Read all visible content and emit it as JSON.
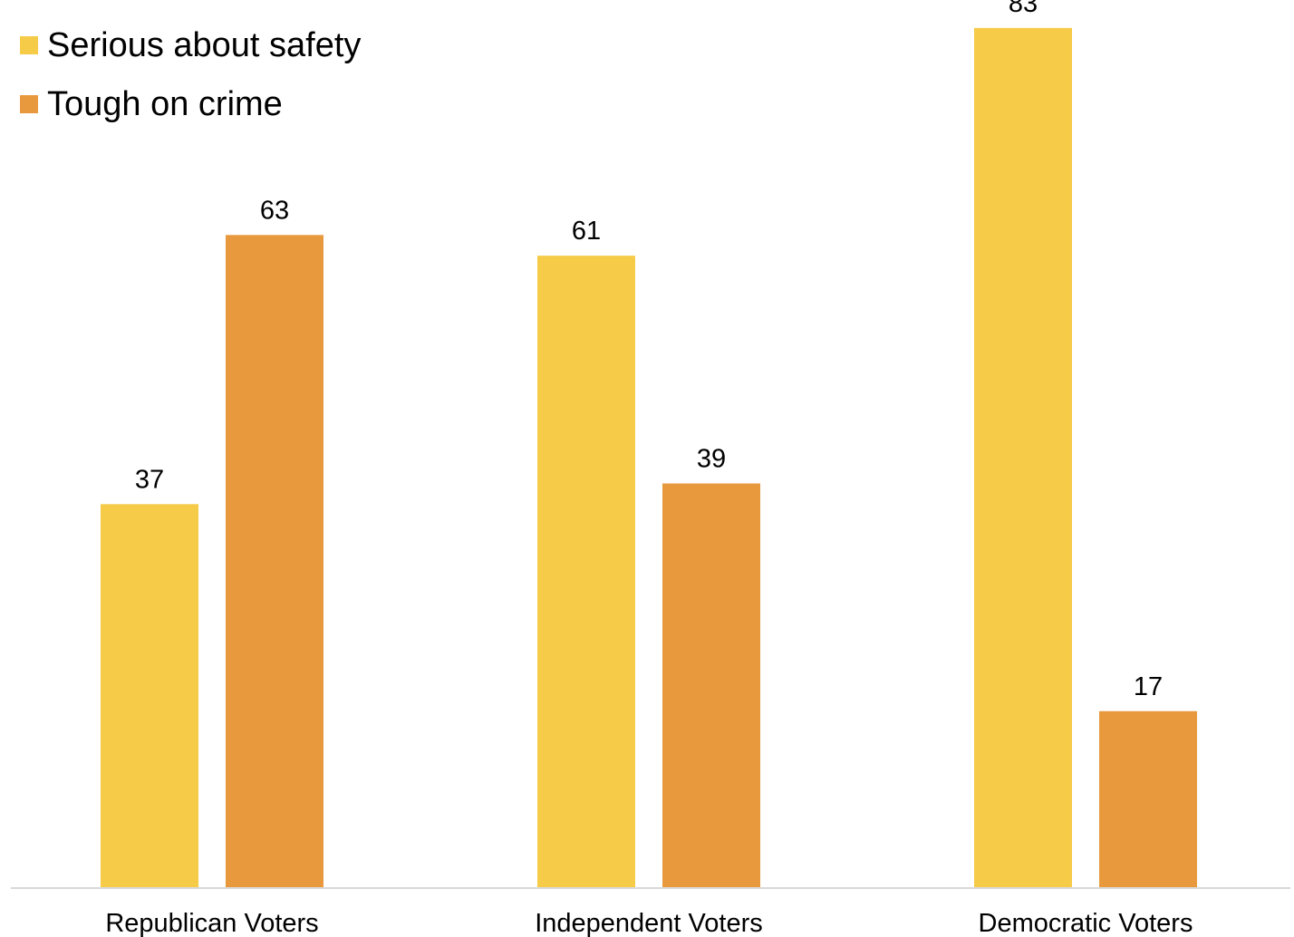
{
  "colors": {
    "series_serious": "#F5CB48",
    "series_tough": "#E8993E",
    "axis": "#D9D9D9",
    "text": "#000000"
  },
  "chart_data": {
    "type": "bar",
    "title": "",
    "xlabel": "",
    "ylabel": "",
    "ylim": [
      0,
      85
    ],
    "grid": false,
    "legend_position": "top-left",
    "categories": [
      "Republican Voters",
      "Independent Voters",
      "Democratic Voters"
    ],
    "series": [
      {
        "name": "Serious about safety",
        "values": [
          37,
          61,
          83
        ],
        "color": "#F5CB48"
      },
      {
        "name": "Tough on crime",
        "values": [
          63,
          39,
          17
        ],
        "color": "#E8993E"
      }
    ]
  }
}
